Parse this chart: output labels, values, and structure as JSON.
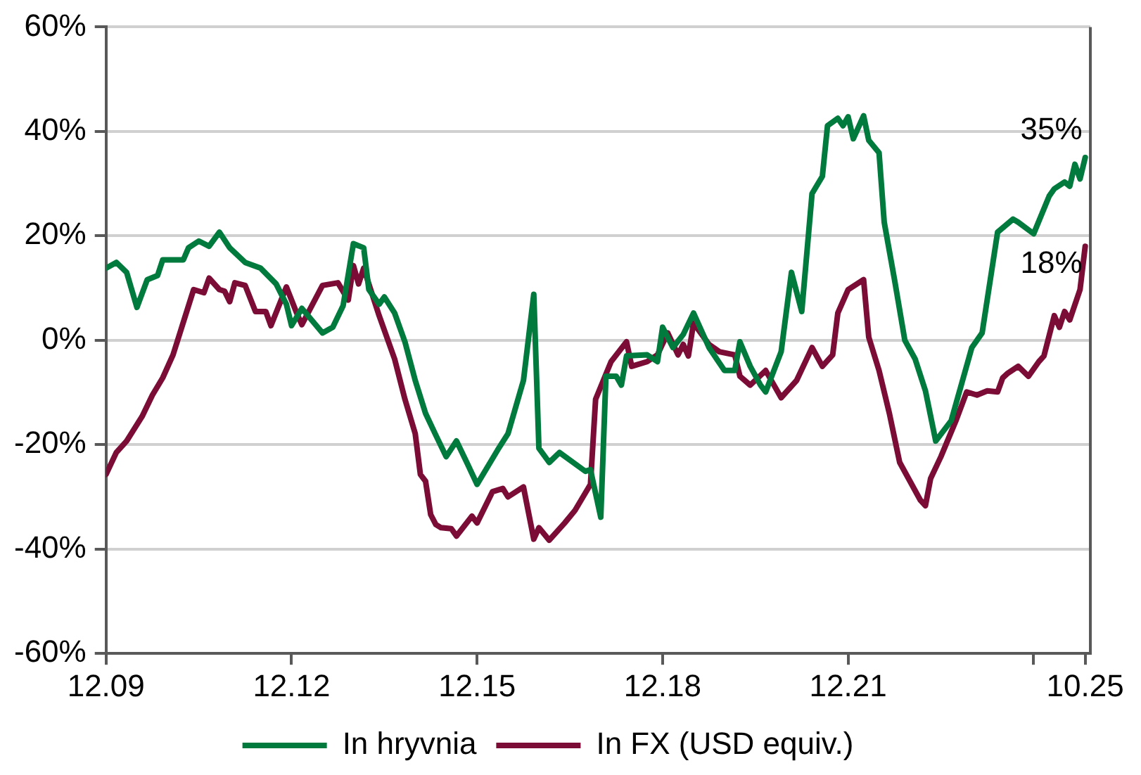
{
  "chart_data": {
    "type": "line",
    "xlim": [
      "2009-12",
      "2025-11"
    ],
    "xticks": [
      {
        "value": "2009-12",
        "label": "12.09"
      },
      {
        "value": "2012-12",
        "label": "12.12"
      },
      {
        "value": "2015-12",
        "label": "12.15"
      },
      {
        "value": "2018-12",
        "label": "12.18"
      },
      {
        "value": "2021-12",
        "label": "12.21"
      },
      {
        "value": "2024-12",
        "label": null
      },
      {
        "value": "2025-10",
        "label": "10.25"
      }
    ],
    "ylim": [
      -60,
      60
    ],
    "yticks": [
      {
        "value": -60,
        "label": "-60%"
      },
      {
        "value": -40,
        "label": "-40%"
      },
      {
        "value": -20,
        "label": "-20%"
      },
      {
        "value": 0,
        "label": "0%"
      },
      {
        "value": 20,
        "label": "20%"
      },
      {
        "value": 40,
        "label": "40%"
      },
      {
        "value": 60,
        "label": "60%"
      }
    ],
    "grid": "y",
    "legend": "bottom",
    "marker": "none",
    "line_style": "solid",
    "series": [
      {
        "name": "In hryvnia",
        "color": "#007a3d",
        "x": [
          "2009-12",
          "2010-02",
          "2010-04",
          "2010-06",
          "2010-08",
          "2010-10",
          "2010-11",
          "2011-03",
          "2011-04",
          "2011-06",
          "2011-08",
          "2011-10",
          "2011-12",
          "2012-03",
          "2012-06",
          "2012-09",
          "2012-11",
          "2012-12",
          "2013-02",
          "2013-06",
          "2013-08",
          "2013-10",
          "2013-12",
          "2014-02",
          "2014-03",
          "2014-05",
          "2014-06",
          "2014-08",
          "2014-10",
          "2014-12",
          "2015-02",
          "2015-04",
          "2015-06",
          "2015-08",
          "2015-10",
          "2015-12",
          "2016-04",
          "2016-06",
          "2016-09",
          "2016-11",
          "2016-12",
          "2017-02",
          "2017-04",
          "2017-09",
          "2017-10",
          "2017-12",
          "2018-01",
          "2018-03",
          "2018-04",
          "2018-05",
          "2018-09",
          "2018-11",
          "2018-12",
          "2019-02",
          "2019-04",
          "2019-06",
          "2019-09",
          "2019-12",
          "2020-02",
          "2020-03",
          "2020-05",
          "2020-07",
          "2020-08",
          "2020-11",
          "2021-01",
          "2021-03",
          "2021-05",
          "2021-07",
          "2021-08",
          "2021-10",
          "2021-11",
          "2021-12",
          "2022-01",
          "2022-03",
          "2022-04",
          "2022-06",
          "2022-07",
          "2022-09",
          "2022-11",
          "2023-01",
          "2023-03",
          "2023-05",
          "2023-08",
          "2023-12",
          "2024-02",
          "2024-05",
          "2024-08",
          "2024-09",
          "2024-12",
          "2025-03",
          "2025-04",
          "2025-06",
          "2025-07",
          "2025-08",
          "2025-09",
          "2025-10"
        ],
        "values": [
          13.8,
          14.9,
          13,
          6.3,
          11.6,
          12.4,
          15.4,
          15.4,
          17.7,
          19,
          18,
          20.7,
          17.7,
          14.9,
          13.8,
          10.8,
          6.9,
          2.8,
          6.1,
          1.4,
          2.5,
          6.6,
          18.5,
          17.7,
          9.7,
          6.9,
          8.3,
          5.2,
          -0.3,
          -7.7,
          -14,
          -18.2,
          -22.3,
          -19.3,
          -23.4,
          -27.6,
          -21,
          -17.9,
          -7.7,
          8.8,
          -20.7,
          -23.4,
          -21.5,
          -25.1,
          -24.8,
          -33.9,
          -6.9,
          -6.9,
          -8.6,
          -3,
          -2.8,
          -4.1,
          2.5,
          -1.4,
          1.1,
          5.2,
          -1.4,
          -5.8,
          -5.8,
          -0.3,
          -5,
          -8.6,
          -9.9,
          -2.2,
          13,
          5.5,
          28.1,
          31.4,
          41.1,
          42.5,
          41.1,
          42.8,
          38.6,
          43,
          38.3,
          35.9,
          22.6,
          11.6,
          0,
          -3.6,
          -9.7,
          -19.3,
          -15.4,
          -1.4,
          1.4,
          20.7,
          23.2,
          22.6,
          20.4,
          27.6,
          29,
          30.3,
          29.5,
          33.7,
          30.9,
          35
        ]
      },
      {
        "name": "In FX (USD equiv.)",
        "color": "#7b0c35",
        "x": [
          "2009-12",
          "2010-02",
          "2010-04",
          "2010-07",
          "2010-09",
          "2010-11",
          "2011-01",
          "2011-05",
          "2011-07",
          "2011-08",
          "2011-10",
          "2011-11",
          "2011-12",
          "2012-01",
          "2012-03",
          "2012-05",
          "2012-07",
          "2012-08",
          "2012-11",
          "2013-01",
          "2013-02",
          "2013-06",
          "2013-09",
          "2013-11",
          "2013-12",
          "2014-01",
          "2014-02",
          "2014-05",
          "2014-08",
          "2014-10",
          "2014-12",
          "2015-01",
          "2015-02",
          "2015-03",
          "2015-04",
          "2015-05",
          "2015-07",
          "2015-08",
          "2015-11",
          "2015-12",
          "2016-03",
          "2016-05",
          "2016-06",
          "2016-09",
          "2016-11",
          "2016-12",
          "2017-02",
          "2017-05",
          "2017-07",
          "2017-10",
          "2017-11",
          "2018-02",
          "2018-05",
          "2018-06",
          "2018-09",
          "2018-11",
          "2019-01",
          "2019-03",
          "2019-04",
          "2019-05",
          "2019-06",
          "2019-09",
          "2019-11",
          "2020-02",
          "2020-03",
          "2020-05",
          "2020-08",
          "2020-11",
          "2021-02",
          "2021-05",
          "2021-07",
          "2021-09",
          "2021-10",
          "2021-12",
          "2022-03",
          "2022-04",
          "2022-06",
          "2022-08",
          "2022-10",
          "2022-12",
          "2023-02",
          "2023-03",
          "2023-04",
          "2023-06",
          "2023-09",
          "2023-11",
          "2024-01",
          "2024-03",
          "2024-05",
          "2024-06",
          "2024-07",
          "2024-09",
          "2024-11",
          "2025-01",
          "2025-02",
          "2025-04",
          "2025-05",
          "2025-06",
          "2025-07",
          "2025-09",
          "2025-10"
        ],
        "values": [
          -25.7,
          -21.5,
          -19.3,
          -14.6,
          -10.5,
          -7.2,
          -2.8,
          9.7,
          9.1,
          11.9,
          9.7,
          9.4,
          7.4,
          11,
          10.5,
          5.5,
          5.5,
          2.8,
          10.2,
          5.2,
          3,
          10.5,
          11,
          7.7,
          14.3,
          10.8,
          13.8,
          4.7,
          -3.6,
          -11.3,
          -17.9,
          -25.7,
          -27,
          -33.4,
          -35.3,
          -35.9,
          -36.1,
          -37.5,
          -33.7,
          -35,
          -29,
          -28.4,
          -30,
          -28.1,
          -38.1,
          -35.9,
          -38.3,
          -35,
          -32.6,
          -27.6,
          -11.3,
          -4.1,
          -0.3,
          -5,
          -4.1,
          -2.8,
          1.4,
          -2.8,
          -0.8,
          -3,
          3.3,
          -0.8,
          -2.2,
          -2.8,
          -6.9,
          -8.6,
          -5.8,
          -11,
          -7.7,
          -1.4,
          -5,
          -2.8,
          5.2,
          9.7,
          11.6,
          0.6,
          -5.8,
          -14,
          -23.4,
          -27,
          -30.6,
          -31.7,
          -26.5,
          -22.3,
          -15.2,
          -9.9,
          -10.5,
          -9.7,
          -9.9,
          -7.2,
          -6.3,
          -5,
          -6.9,
          -4.1,
          -3,
          4.7,
          2.5,
          5.5,
          3.9,
          9.7,
          18
        ]
      }
    ],
    "annotations": [
      {
        "text": "35%",
        "x": "2025-10",
        "y": 35
      },
      {
        "text": "18%",
        "x": "2025-10",
        "y": 18
      }
    ]
  }
}
